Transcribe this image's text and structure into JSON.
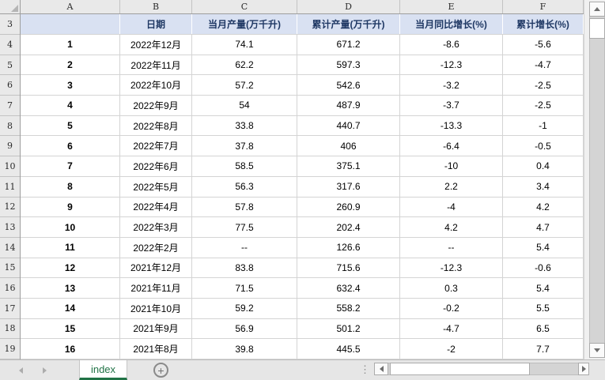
{
  "app": {
    "type": "spreadsheet"
  },
  "spreadsheet": {
    "column_headers": [
      "A",
      "B",
      "C",
      "D",
      "E",
      "F"
    ],
    "row_numbers": [
      "3",
      "4",
      "5",
      "6",
      "7",
      "8",
      "9",
      "10",
      "11",
      "12",
      "13",
      "14",
      "15",
      "16",
      "17",
      "18",
      "19"
    ],
    "header_cells": [
      "",
      "日期",
      "当月产量(万千升)",
      "累计产量(万千升)",
      "当月同比增长(%)",
      "累计增长(%)"
    ],
    "rows": [
      {
        "no": "1",
        "date": "2022年12月",
        "monthly": "74.1",
        "cumulative": "671.2",
        "yoy": "-8.6",
        "cum_growth": "-5.6"
      },
      {
        "no": "2",
        "date": "2022年11月",
        "monthly": "62.2",
        "cumulative": "597.3",
        "yoy": "-12.3",
        "cum_growth": "-4.7"
      },
      {
        "no": "3",
        "date": "2022年10月",
        "monthly": "57.2",
        "cumulative": "542.6",
        "yoy": "-3.2",
        "cum_growth": "-2.5"
      },
      {
        "no": "4",
        "date": "2022年9月",
        "monthly": "54",
        "cumulative": "487.9",
        "yoy": "-3.7",
        "cum_growth": "-2.5"
      },
      {
        "no": "5",
        "date": "2022年8月",
        "monthly": "33.8",
        "cumulative": "440.7",
        "yoy": "-13.3",
        "cum_growth": "-1"
      },
      {
        "no": "6",
        "date": "2022年7月",
        "monthly": "37.8",
        "cumulative": "406",
        "yoy": "-6.4",
        "cum_growth": "-0.5"
      },
      {
        "no": "7",
        "date": "2022年6月",
        "monthly": "58.5",
        "cumulative": "375.1",
        "yoy": "-10",
        "cum_growth": "0.4"
      },
      {
        "no": "8",
        "date": "2022年5月",
        "monthly": "56.3",
        "cumulative": "317.6",
        "yoy": "2.2",
        "cum_growth": "3.4"
      },
      {
        "no": "9",
        "date": "2022年4月",
        "monthly": "57.8",
        "cumulative": "260.9",
        "yoy": "-4",
        "cum_growth": "4.2"
      },
      {
        "no": "10",
        "date": "2022年3月",
        "monthly": "77.5",
        "cumulative": "202.4",
        "yoy": "4.2",
        "cum_growth": "4.7"
      },
      {
        "no": "11",
        "date": "2022年2月",
        "monthly": "--",
        "cumulative": "126.6",
        "yoy": "--",
        "cum_growth": "5.4"
      },
      {
        "no": "12",
        "date": "2021年12月",
        "monthly": "83.8",
        "cumulative": "715.6",
        "yoy": "-12.3",
        "cum_growth": "-0.6"
      },
      {
        "no": "13",
        "date": "2021年11月",
        "monthly": "71.5",
        "cumulative": "632.4",
        "yoy": "0.3",
        "cum_growth": "5.4"
      },
      {
        "no": "14",
        "date": "2021年10月",
        "monthly": "59.2",
        "cumulative": "558.2",
        "yoy": "-0.2",
        "cum_growth": "5.5"
      },
      {
        "no": "15",
        "date": "2021年9月",
        "monthly": "56.9",
        "cumulative": "501.2",
        "yoy": "-4.7",
        "cum_growth": "6.5"
      },
      {
        "no": "16",
        "date": "2021年8月",
        "monthly": "39.8",
        "cumulative": "445.5",
        "yoy": "-2",
        "cum_growth": "7.7"
      }
    ]
  },
  "sheet_bar": {
    "active_tab": "index",
    "add_sheet_label": "+",
    "splitter_glyph": "⋮"
  },
  "colors": {
    "header_fill": "#D9E1F2",
    "header_text": "#1F3864",
    "active_tab_green": "#217346",
    "gridline": "#D4D4D4",
    "panel_gray": "#E6E6E6"
  }
}
